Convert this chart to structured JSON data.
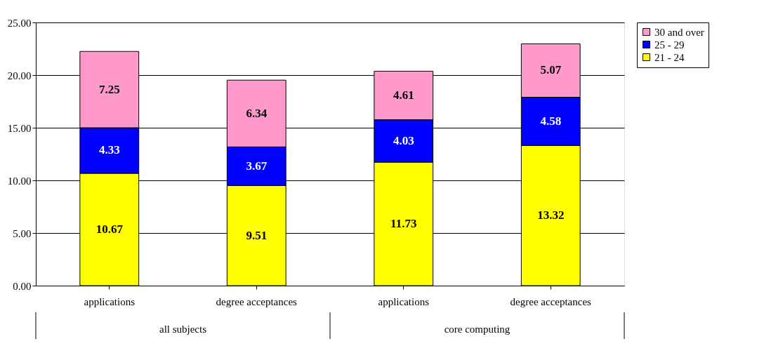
{
  "chart_data": {
    "type": "bar",
    "stacked": true,
    "categories": [
      "applications",
      "degree acceptances",
      "applications",
      "degree acceptances"
    ],
    "annotations": [
      "all subjects",
      "core computing"
    ],
    "series": [
      {
        "name": "21 - 24",
        "color": "#ffff00",
        "values": [
          10.67,
          9.51,
          11.73,
          13.32
        ]
      },
      {
        "name": "25 - 29",
        "color": "#0000ff",
        "values": [
          4.33,
          3.67,
          4.03,
          4.58
        ]
      },
      {
        "name": "30 and over",
        "color": "#ff99cc",
        "values": [
          7.25,
          6.34,
          4.61,
          5.07
        ]
      }
    ],
    "ylim": [
      0,
      25
    ],
    "yticks": [
      {
        "value": 0,
        "label": "0.00"
      },
      {
        "value": 5,
        "label": "5.00"
      },
      {
        "value": 10,
        "label": "10.00"
      },
      {
        "value": 15,
        "label": "15.00"
      },
      {
        "value": 20,
        "label": "20.00"
      },
      {
        "value": 25,
        "label": "25.00"
      }
    ],
    "grid": "y",
    "legend": "right",
    "data_labels": true
  }
}
